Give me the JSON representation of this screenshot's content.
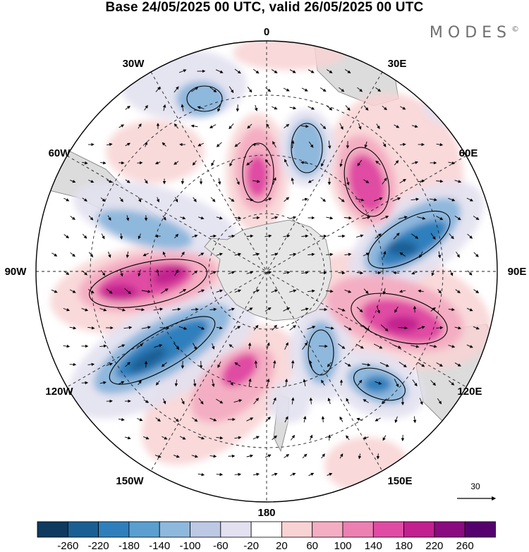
{
  "title": "Base 24/05/2025 00 UTC, valid 26/05/2025 00 UTC",
  "brand": "MODES",
  "brand_mark": "©",
  "longitude_labels": {
    "lon_0": "0",
    "lon_30e": "30E",
    "lon_60e": "60E",
    "lon_90e": "90E",
    "lon_120e": "120E",
    "lon_150e": "150E",
    "lon_180": "180",
    "lon_150w": "150W",
    "lon_120w": "120W",
    "lon_90w": "90W",
    "lon_60w": "60W",
    "lon_30w": "30W"
  },
  "reference_vector": {
    "value": "30"
  },
  "projection": "south polar stereographic",
  "colorbar": {
    "colors": [
      "#0f3a5f",
      "#1a5f94",
      "#2f7fbd",
      "#5a9fd0",
      "#8fb8dd",
      "#bcc8e4",
      "#e3e1f0",
      "#ffffff",
      "#f8d3d4",
      "#f4aec3",
      "#ec80b2",
      "#e04ca3",
      "#c2208f",
      "#8a0a7f",
      "#55006e"
    ],
    "labels": [
      "-260",
      "-220",
      "-180",
      "-140",
      "-100",
      "-60",
      "-20",
      "20",
      "60",
      "100",
      "140",
      "180",
      "220",
      "260"
    ]
  },
  "colors": {
    "land": "#dcdcdc",
    "antarctica": "#e6e6e6",
    "coast": "#7a7a7a",
    "grid": "#222222",
    "arrows": "#000000"
  }
}
